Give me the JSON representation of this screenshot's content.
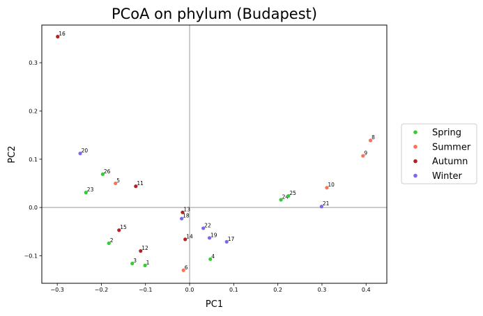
{
  "chart_data": {
    "type": "scatter",
    "title": "PCoA on phylum (Budapest)",
    "xlabel": "PC1",
    "ylabel": "PC2",
    "xlim": [
      -0.335,
      0.447
    ],
    "ylim": [
      -0.157,
      0.378
    ],
    "xticks": [
      -0.3,
      -0.2,
      -0.1,
      0.0,
      0.1,
      0.2,
      0.3,
      0.4
    ],
    "xtick_labels": [
      "−0.3",
      "−0.2",
      "−0.1",
      "0.0",
      "0.1",
      "0.2",
      "0.3",
      "0.4"
    ],
    "yticks": [
      -0.1,
      0.0,
      0.1,
      0.2,
      0.3
    ],
    "ytick_labels": [
      "−0.1",
      "0.0",
      "0.1",
      "0.2",
      "0.3"
    ],
    "reference_lines": {
      "x": 0.0,
      "y": 0.0,
      "color": "#bbbbbb"
    },
    "grid": false,
    "legend_position": "outside right",
    "series": [
      {
        "name": "Spring",
        "color": "#33cc33",
        "points": [
          {
            "x": -0.101,
            "y": -0.12,
            "label": "1"
          },
          {
            "x": -0.183,
            "y": -0.074,
            "label": "2"
          },
          {
            "x": -0.13,
            "y": -0.116,
            "label": "3"
          },
          {
            "x": 0.047,
            "y": -0.107,
            "label": "4"
          },
          {
            "x": 0.207,
            "y": 0.016,
            "label": "24"
          },
          {
            "x": 0.224,
            "y": 0.024,
            "label": "25"
          },
          {
            "x": -0.197,
            "y": 0.069,
            "label": "26"
          },
          {
            "x": -0.235,
            "y": 0.031,
            "label": "23"
          }
        ]
      },
      {
        "name": "Summer",
        "color": "#ff7055",
        "points": [
          {
            "x": -0.168,
            "y": 0.05,
            "label": "5"
          },
          {
            "x": -0.014,
            "y": -0.13,
            "label": "6"
          },
          {
            "x": 0.41,
            "y": 0.139,
            "label": "8"
          },
          {
            "x": 0.393,
            "y": 0.107,
            "label": "9"
          },
          {
            "x": 0.311,
            "y": 0.041,
            "label": "10"
          }
        ]
      },
      {
        "name": "Autumn",
        "color": "#b22222",
        "points": [
          {
            "x": -0.122,
            "y": 0.044,
            "label": "11"
          },
          {
            "x": -0.111,
            "y": -0.09,
            "label": "12"
          },
          {
            "x": -0.016,
            "y": -0.01,
            "label": "13"
          },
          {
            "x": -0.01,
            "y": -0.066,
            "label": "14"
          },
          {
            "x": -0.16,
            "y": -0.047,
            "label": "15"
          },
          {
            "x": -0.299,
            "y": 0.354,
            "label": "16"
          }
        ]
      },
      {
        "name": "Winter",
        "color": "#7b68ee",
        "points": [
          {
            "x": -0.018,
            "y": -0.023,
            "label": "18"
          },
          {
            "x": 0.045,
            "y": -0.063,
            "label": "19"
          },
          {
            "x": 0.084,
            "y": -0.071,
            "label": "17"
          },
          {
            "x": 0.031,
            "y": -0.043,
            "label": "22"
          },
          {
            "x": 0.299,
            "y": 0.002,
            "label": "21"
          },
          {
            "x": -0.248,
            "y": 0.112,
            "label": "20"
          }
        ]
      }
    ]
  }
}
